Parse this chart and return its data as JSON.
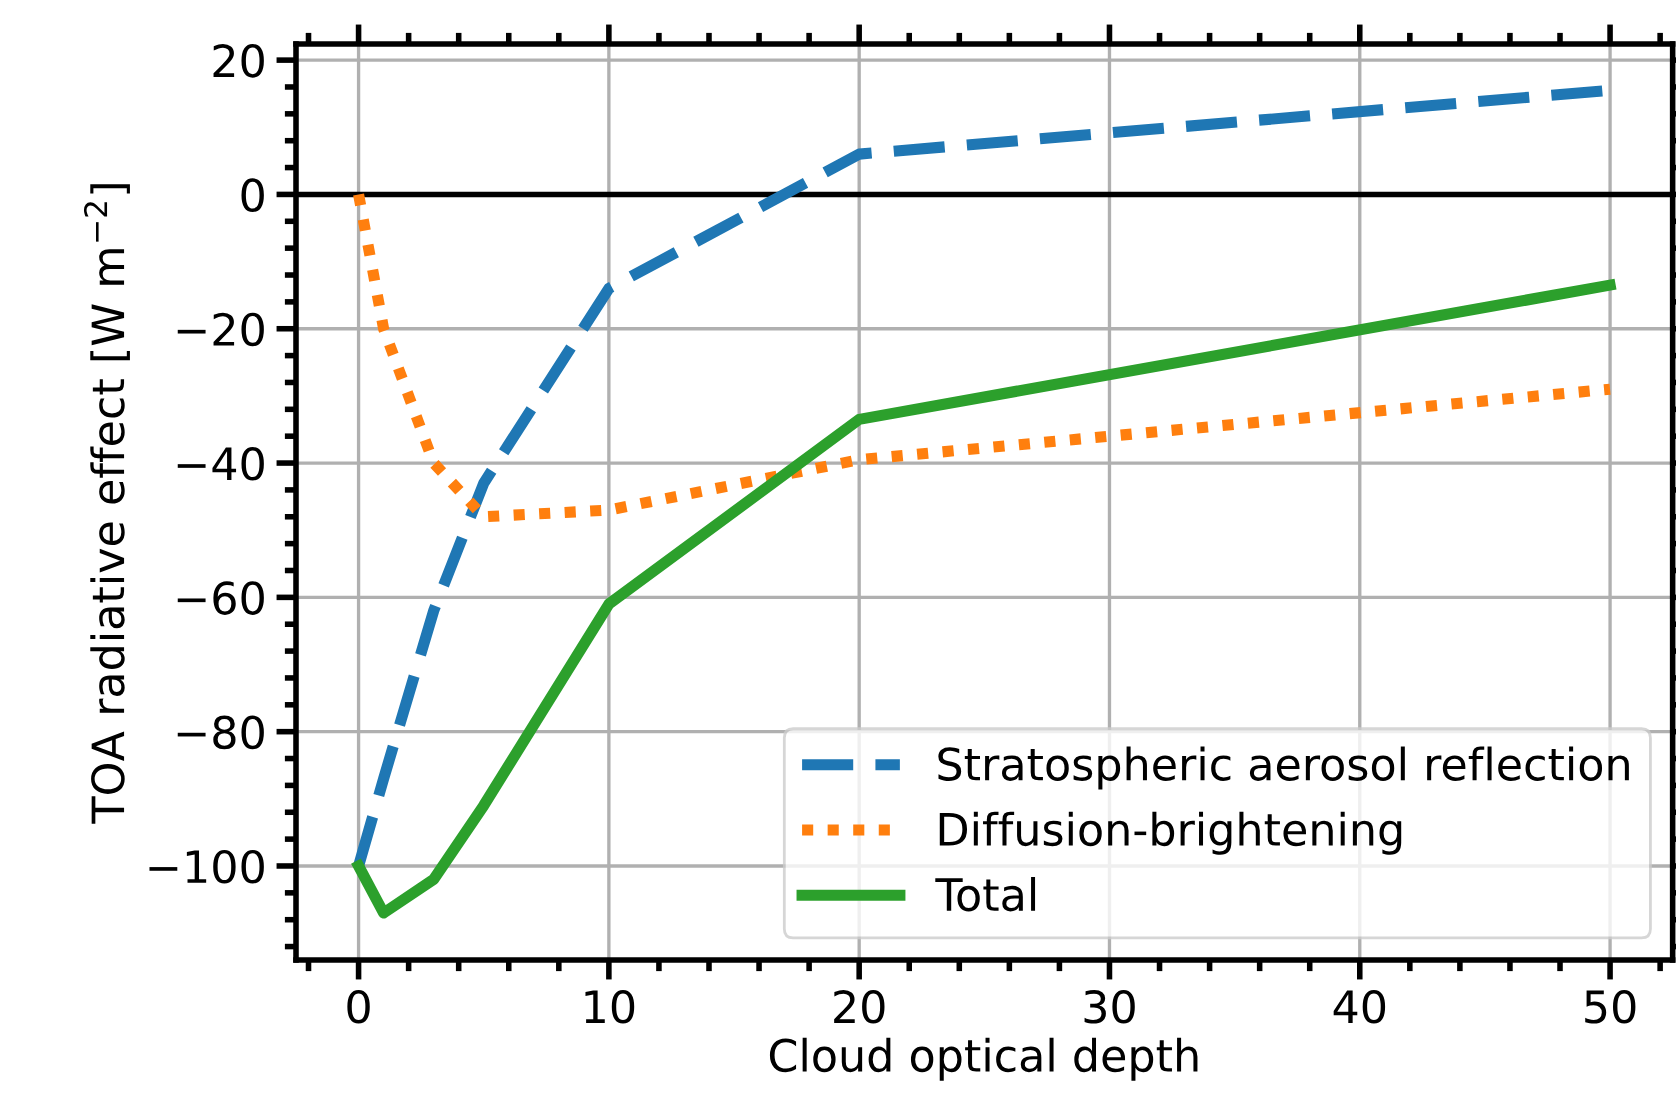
{
  "chart_data": {
    "type": "line",
    "xlabel": "Cloud optical depth",
    "ylabel": "TOA radiative effect [W m$^{−2}$]",
    "x": [
      0,
      1,
      3,
      5,
      10,
      20,
      50
    ],
    "series": [
      {
        "name": "Stratospheric aerosol reflection",
        "color": "#1f77b4",
        "line_style": "dashed",
        "values": [
          -100,
          -87,
          -62,
          -43,
          -14,
          6,
          15.5
        ]
      },
      {
        "name": "Diffusion-brightening",
        "color": "#ff7f0e",
        "line_style": "dotted",
        "values": [
          0,
          -20,
          -40,
          -48,
          -47,
          -39.5,
          -29
        ]
      },
      {
        "name": "Total",
        "color": "#2ca02c",
        "line_style": "solid",
        "values": [
          -100,
          -107,
          -102,
          -91,
          -61,
          -33.5,
          -13.5
        ]
      }
    ],
    "xlim": [
      -2.5,
      52.5
    ],
    "ylim": [
      -114,
      22.4
    ],
    "xticks": [
      0,
      10,
      20,
      30,
      40,
      50
    ],
    "yticks": [
      {
        "value": 20,
        "label": "20"
      },
      {
        "value": 0,
        "label": "0"
      },
      {
        "value": -20,
        "label": "−20"
      },
      {
        "value": -40,
        "label": "−40"
      },
      {
        "value": -60,
        "label": "−60"
      },
      {
        "value": -80,
        "label": "−80"
      },
      {
        "value": -100,
        "label": "−100"
      }
    ],
    "ref_lines": [
      {
        "axis": "y",
        "value": 0,
        "color": "#000000",
        "line_style": "solid"
      }
    ],
    "grid": true,
    "legend": "bottom right",
    "marker": "none"
  }
}
